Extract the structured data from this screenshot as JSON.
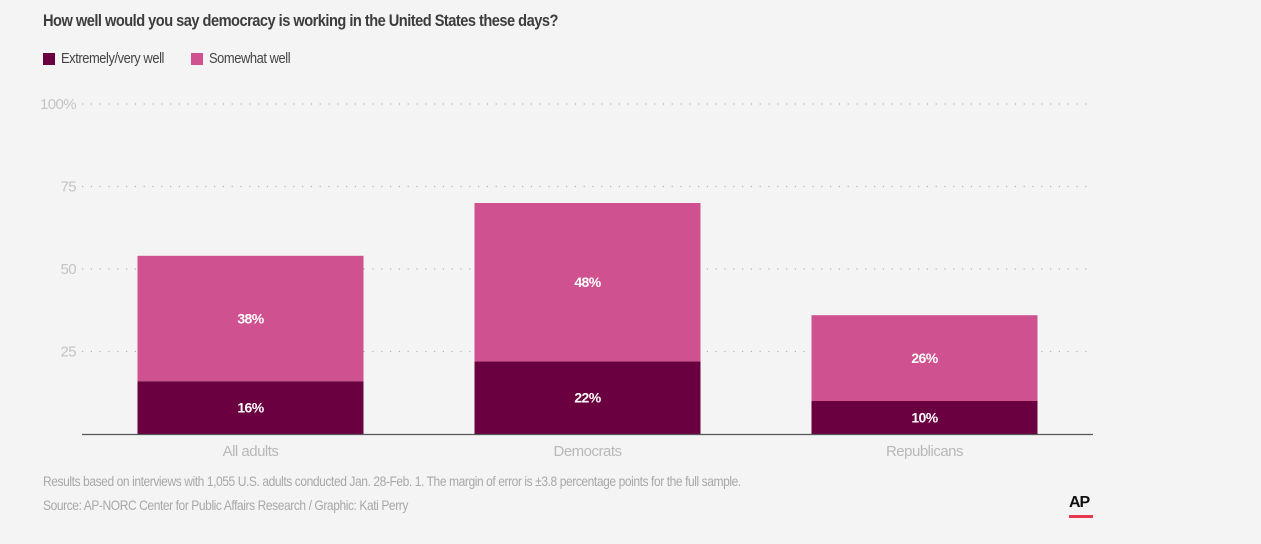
{
  "chart_data": {
    "type": "bar",
    "stacked": true,
    "title": "How well would you say democracy is working in the United States these days?",
    "categories": [
      "All adults",
      "Democrats",
      "Republicans"
    ],
    "series": [
      {
        "name": "Extremely/very well",
        "values": [
          16,
          22,
          10
        ],
        "color": "#6b0040",
        "labels": [
          "16%",
          "22%",
          "10%"
        ]
      },
      {
        "name": "Somewhat well",
        "values": [
          38,
          48,
          26
        ],
        "color": "#d05190",
        "labels": [
          "38%",
          "48%",
          "26%"
        ]
      }
    ],
    "ylim": [
      0,
      100
    ],
    "yticks": [
      25,
      50,
      75,
      100
    ],
    "ytick_labels": [
      "25",
      "50",
      "75",
      "100%"
    ],
    "grid": "dotted horizontal",
    "legend_position": "top-left",
    "xlabel": "",
    "ylabel": ""
  },
  "notes": {
    "methodology": "Results based on interviews with 1,055 U.S. adults conducted Jan. 28-Feb. 1. The margin of error is ±3.8 percentage points for the full sample.",
    "source": "Source: AP-NORC Center for Public Affairs Research / Graphic: Kati Perry"
  },
  "logo": {
    "text": "AP",
    "accent_color": "#e8384f"
  }
}
